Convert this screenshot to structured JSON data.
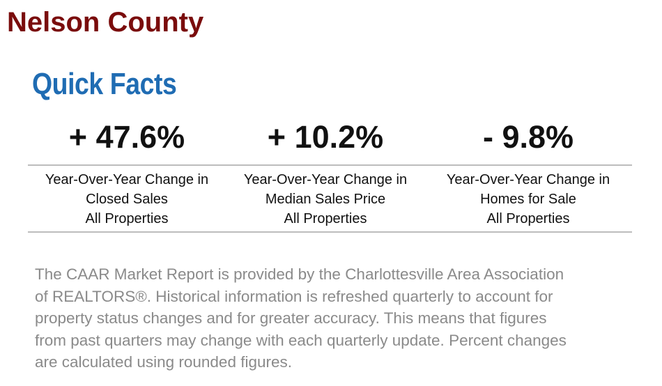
{
  "header": {
    "title": "Nelson County",
    "subtitle": "Quick Facts"
  },
  "facts": [
    {
      "value": "+ 47.6%",
      "label_lines": [
        "Year-Over-Year Change in",
        "Closed Sales",
        "All Properties"
      ]
    },
    {
      "value": "+ 10.2%",
      "label_lines": [
        "Year-Over-Year Change in",
        "Median Sales Price",
        "All Properties"
      ]
    },
    {
      "value": "- 9.8%",
      "label_lines": [
        "Year-Over-Year Change in",
        "Homes for Sale",
        "All Properties"
      ]
    }
  ],
  "footer": {
    "lines": [
      "The CAAR Market Report is provided by the Charlottesville Area Association",
      "of REALTORS®. Historical information is refreshed quarterly to account for",
      "property status changes and for greater accuracy. This means that figures",
      "from past quarters may change with each quarterly update. Percent changes",
      "are calculated using rounded figures."
    ]
  }
}
